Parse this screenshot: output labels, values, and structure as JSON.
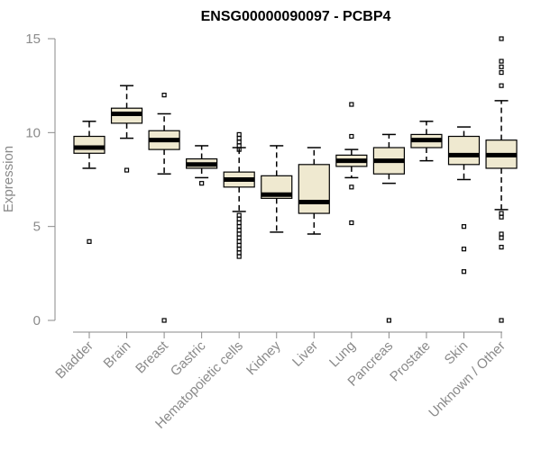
{
  "chart_data": {
    "type": "boxplot",
    "title": "ENSG00000090097 - PCBP4",
    "xlabel": "",
    "ylabel": "Expression",
    "ylim": [
      0,
      15
    ],
    "yticks": [
      0,
      5,
      10,
      15
    ],
    "box_fill": "#efe9d0",
    "categories": [
      "Bladder",
      "Brain",
      "Breast",
      "Gastric",
      "Hematopoietic cells",
      "Kidney",
      "Liver",
      "Lung",
      "Pancreas",
      "Prostate",
      "Skin",
      "Unknown / Other"
    ],
    "boxes": [
      {
        "min": 8.1,
        "q1": 8.9,
        "median": 9.2,
        "q3": 9.8,
        "max": 10.6,
        "outliers": [
          4.2
        ]
      },
      {
        "min": 9.7,
        "q1": 10.5,
        "median": 11.0,
        "q3": 11.3,
        "max": 12.5,
        "outliers": [
          8.0
        ]
      },
      {
        "min": 7.8,
        "q1": 9.1,
        "median": 9.6,
        "q3": 10.1,
        "max": 11.0,
        "outliers": [
          12.0,
          0.0
        ]
      },
      {
        "min": 7.6,
        "q1": 8.1,
        "median": 8.3,
        "q3": 8.6,
        "max": 9.3,
        "outliers": [
          7.3
        ]
      },
      {
        "min": 5.8,
        "q1": 7.1,
        "median": 7.5,
        "q3": 7.9,
        "max": 9.2,
        "outliers": [
          9.9,
          9.7,
          9.5,
          9.3,
          9.1,
          5.6,
          5.4,
          5.2,
          5.0,
          4.8,
          4.6,
          4.4,
          4.2,
          4.0,
          3.8,
          3.6,
          3.4
        ]
      },
      {
        "min": 4.7,
        "q1": 6.5,
        "median": 6.7,
        "q3": 7.7,
        "max": 9.3,
        "outliers": []
      },
      {
        "min": 4.6,
        "q1": 5.7,
        "median": 6.3,
        "q3": 8.3,
        "max": 9.2,
        "outliers": []
      },
      {
        "min": 7.6,
        "q1": 8.2,
        "median": 8.5,
        "q3": 8.8,
        "max": 9.1,
        "outliers": [
          11.5,
          9.8,
          7.1,
          5.2
        ]
      },
      {
        "min": 7.3,
        "q1": 7.8,
        "median": 8.5,
        "q3": 9.2,
        "max": 9.9,
        "outliers": [
          0.0
        ]
      },
      {
        "min": 8.5,
        "q1": 9.2,
        "median": 9.6,
        "q3": 9.9,
        "max": 10.6,
        "outliers": []
      },
      {
        "min": 7.5,
        "q1": 8.3,
        "median": 8.8,
        "q3": 9.8,
        "max": 10.3,
        "outliers": [
          5.0,
          3.8,
          2.6
        ]
      },
      {
        "min": 5.9,
        "q1": 8.1,
        "median": 8.8,
        "q3": 9.6,
        "max": 11.7,
        "outliers": [
          15.0,
          13.8,
          13.5,
          13.2,
          12.5,
          5.7,
          5.5,
          4.6,
          4.4,
          3.9,
          0.0
        ]
      }
    ]
  }
}
